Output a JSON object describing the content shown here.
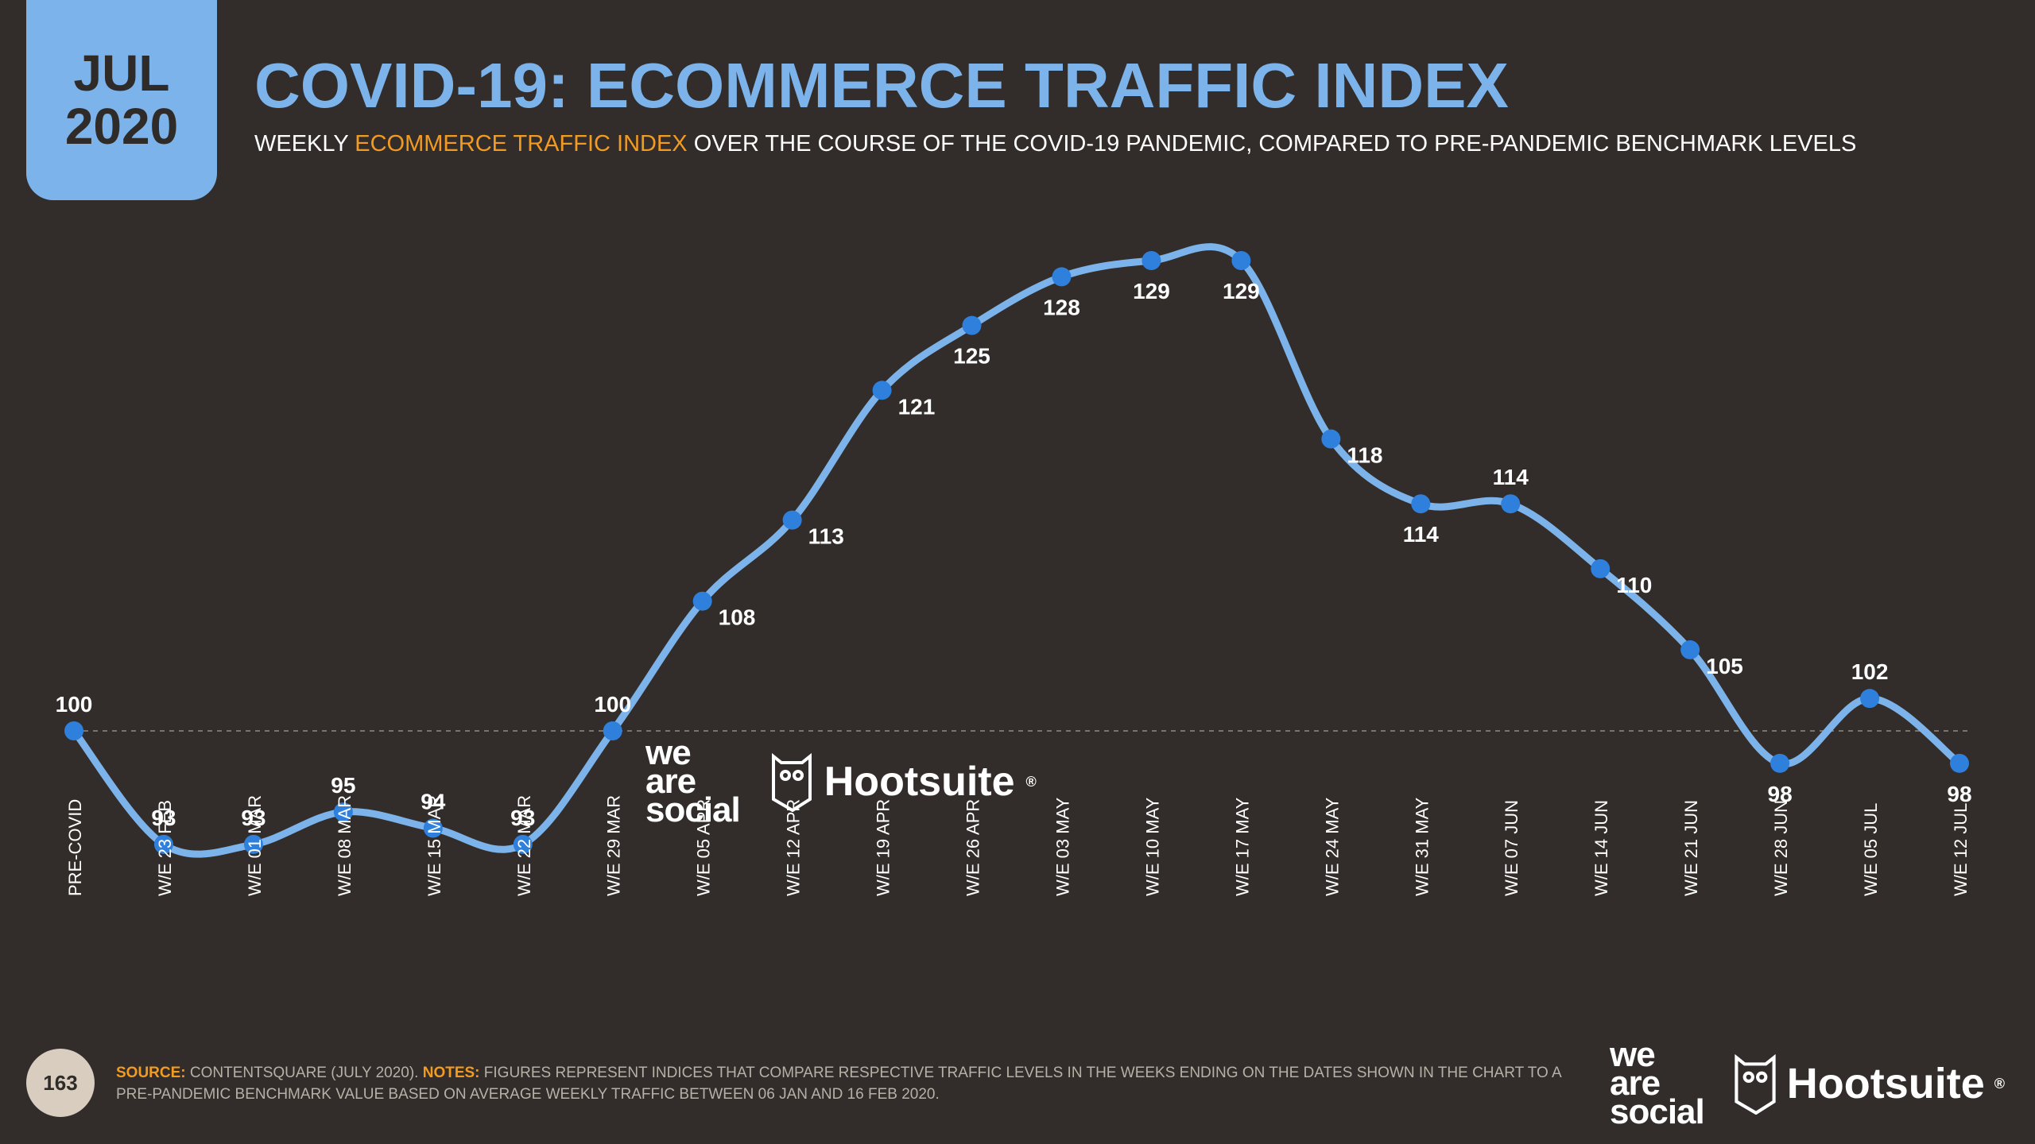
{
  "badge": {
    "month": "JUL",
    "year": "2020"
  },
  "header": {
    "title": "COVID-19: ECOMMERCE TRAFFIC INDEX",
    "subtitle_pre": "WEEKLY ",
    "subtitle_highlight": "ECOMMERCE TRAFFIC INDEX",
    "subtitle_post": " OVER THE COURSE OF THE COVID-19 PANDEMIC, COMPARED TO PRE-PANDEMIC BENCHMARK LEVELS"
  },
  "colors": {
    "accent": "#7cb3ea",
    "line": "#7cb3ea",
    "point": "#2f80dc",
    "highlight": "#f29b23",
    "background": "#322d2a"
  },
  "chart_data": {
    "type": "line",
    "title": "COVID-19: ECOMMERCE TRAFFIC INDEX",
    "categories": [
      "PRE-COVID",
      "W/E 23 FEB",
      "W/E 01 MAR",
      "W/E 08 MAR",
      "W/E 15 MAR",
      "W/E 22 MAR",
      "W/E 29 MAR",
      "W/E 05 APR",
      "W/E 12 APR",
      "W/E 19 APR",
      "W/E 26 APR",
      "W/E 03 MAY",
      "W/E 10 MAY",
      "W/E 17 MAY",
      "W/E 24 MAY",
      "W/E 31 MAY",
      "W/E 07 JUN",
      "W/E 14 JUN",
      "W/E 21 JUN",
      "W/E 28 JUN",
      "W/E 05 JUL",
      "W/E 12 JUL"
    ],
    "values": [
      100,
      93,
      93,
      95,
      94,
      93,
      100,
      108,
      113,
      121,
      125,
      128,
      129,
      129,
      118,
      114,
      114,
      110,
      105,
      98,
      102,
      98
    ],
    "label_placement": [
      "above",
      "above",
      "above",
      "above",
      "above",
      "above",
      "above",
      "right",
      "right",
      "right",
      "below",
      "below",
      "below",
      "below",
      "right",
      "below",
      "above",
      "right",
      "right",
      "below",
      "above",
      "below"
    ],
    "baseline": 100,
    "ylim": [
      90,
      131
    ],
    "grid": false
  },
  "brand": {
    "was_lines": [
      "we",
      "are",
      "social"
    ],
    "hootsuite": "Hootsuite",
    "trademark": "®"
  },
  "footer": {
    "page_number": "163",
    "source_label": "SOURCE:",
    "source_text": " CONTENTSQUARE (JULY 2020). ",
    "notes_label": "NOTES:",
    "notes_text": " FIGURES REPRESENT INDICES THAT COMPARE RESPECTIVE TRAFFIC LEVELS IN THE WEEKS ENDING ON THE DATES SHOWN IN THE CHART TO A PRE-PANDEMIC BENCHMARK VALUE BASED ON AVERAGE WEEKLY TRAFFIC BETWEEN 06 JAN AND 16 FEB 2020."
  }
}
